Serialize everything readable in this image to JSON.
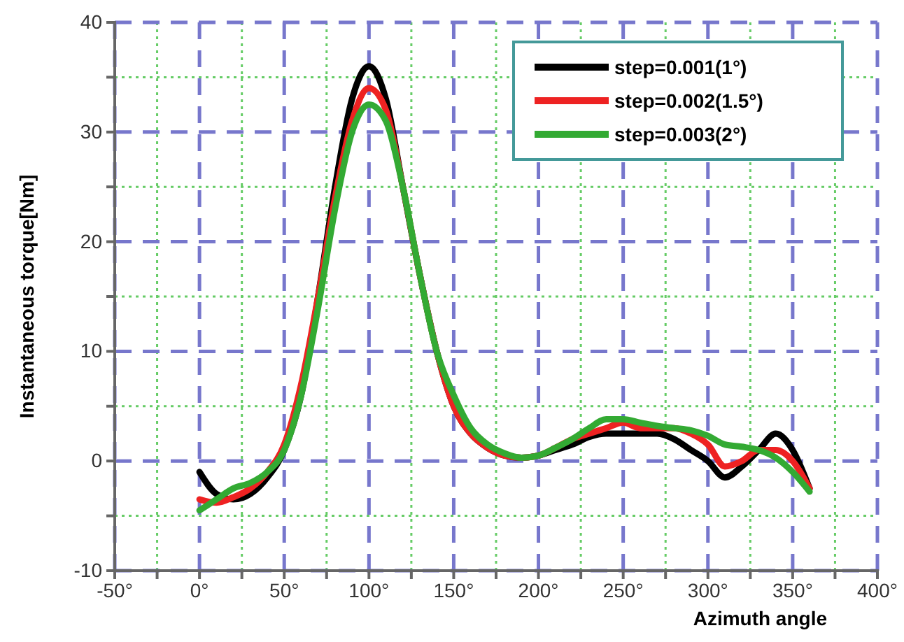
{
  "chart_data": {
    "type": "line",
    "xlabel": "Azimuth angle",
    "ylabel": "Instantaneous torque[Nm]",
    "xlim": [
      -50,
      400
    ],
    "ylim": [
      -10,
      40
    ],
    "xticks": [
      {
        "value": -50,
        "label": "-50°"
      },
      {
        "value": -25,
        "label": null
      },
      {
        "value": 0,
        "label": "0°"
      },
      {
        "value": 25,
        "label": null
      },
      {
        "value": 50,
        "label": "50°"
      },
      {
        "value": 75,
        "label": null
      },
      {
        "value": 100,
        "label": "100°"
      },
      {
        "value": 125,
        "label": null
      },
      {
        "value": 150,
        "label": "150°"
      },
      {
        "value": 175,
        "label": null
      },
      {
        "value": 200,
        "label": "200°"
      },
      {
        "value": 225,
        "label": null
      },
      {
        "value": 250,
        "label": "250°"
      },
      {
        "value": 275,
        "label": null
      },
      {
        "value": 300,
        "label": "300°"
      },
      {
        "value": 325,
        "label": null
      },
      {
        "value": 350,
        "label": "350°"
      },
      {
        "value": 375,
        "label": null
      },
      {
        "value": 400,
        "label": "400°"
      }
    ],
    "yticks": [
      -10,
      {
        "value": -5,
        "label": null
      },
      0,
      {
        "value": 5,
        "label": null
      },
      10,
      {
        "value": 15,
        "label": null
      },
      20,
      {
        "value": 25,
        "label": null
      },
      30,
      {
        "value": 35,
        "label": null
      },
      40
    ],
    "grid": true,
    "legend": "top right",
    "line_style": "solid",
    "marker": "none",
    "x": [
      0,
      10,
      20,
      30,
      40,
      50,
      60,
      70,
      80,
      90,
      100,
      110,
      120,
      130,
      140,
      150,
      160,
      170,
      180,
      190,
      200,
      210,
      220,
      230,
      240,
      250,
      260,
      270,
      280,
      290,
      300,
      310,
      320,
      330,
      340,
      350,
      360
    ],
    "series": [
      {
        "name": "step=0.001(1°)",
        "color": "#000000",
        "values": [
          -1,
          -3,
          -3.5,
          -3,
          -1.5,
          1,
          6,
          15,
          25,
          33,
          36,
          33,
          25,
          17,
          10,
          5,
          2.5,
          1.2,
          0.5,
          0.3,
          0.5,
          1,
          1.5,
          2.2,
          2.5,
          2.5,
          2.5,
          2.5,
          2,
          1,
          0,
          -1.5,
          -0.5,
          1,
          2.5,
          1,
          -2.5
        ]
      },
      {
        "name": "step=0.002(1.5°)",
        "color": "#ee2222",
        "values": [
          -3.5,
          -3.8,
          -3.3,
          -2.5,
          -1,
          1.5,
          7,
          15,
          24,
          31,
          34,
          32,
          25,
          17,
          10,
          5,
          2.5,
          1.2,
          0.5,
          0.3,
          0.5,
          1.2,
          2,
          2.5,
          3,
          3.5,
          3,
          3,
          3,
          2.5,
          1.5,
          -0.5,
          0,
          1,
          1,
          0,
          -2.5
        ]
      },
      {
        "name": "step=0.003(2°)",
        "color": "#33aa33",
        "values": [
          -4.5,
          -3.5,
          -2.5,
          -2,
          -1,
          1,
          6,
          14,
          23,
          30,
          32.5,
          31,
          25,
          17,
          10,
          6,
          3,
          1.5,
          0.7,
          0.3,
          0.5,
          1.2,
          2,
          3,
          3.8,
          3.8,
          3.5,
          3.2,
          3,
          2.8,
          2.3,
          1.5,
          1.3,
          1,
          0.3,
          -1,
          -2.8
        ]
      }
    ]
  }
}
